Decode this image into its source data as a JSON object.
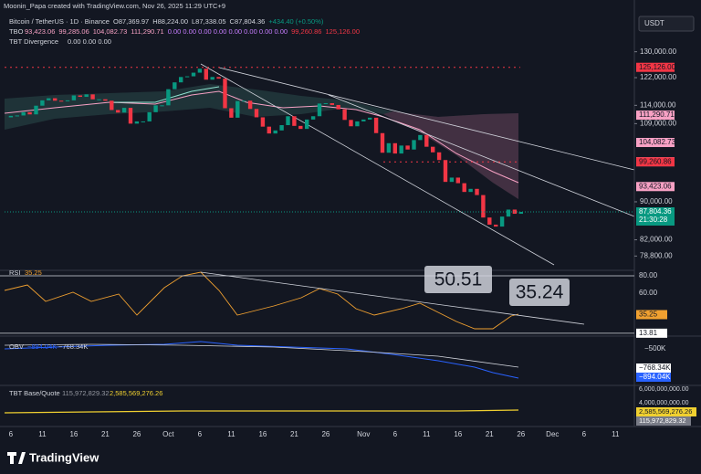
{
  "chart_data": {
    "type": "candlestick",
    "header": "Moonin_Papa created with TradingView.com, Nov 26, 2025 11:29 UTC+9",
    "symbol": "Bitcoin / TetherUS · 1D · Binance",
    "ohlc": [
      "O87,369.97",
      "H88,224.00",
      "L87,338.05",
      "C87,804.36",
      "+434.40 (+0.50%)"
    ],
    "tbo_name": "TBO",
    "tbo_values": [
      "93,423.06",
      "99,285.06",
      "104,082.73",
      "111,290.71",
      "0.00 0.00 0.00 0.00 0.00 0.00 0.00 0.00",
      "99,260.86",
      "125,126.00"
    ],
    "divergence_name": "TBT Divergence",
    "divergence_values": "0.00 0.00 0.00",
    "currency": "USDT",
    "log_scale": true,
    "up_color": "#089981",
    "down_color": "#f23645",
    "ylim": [
      76600,
      142700
    ],
    "yticks": [
      {
        "value": 130000,
        "label": "130,000.00"
      },
      {
        "value": 122000,
        "label": "122,000.00"
      },
      {
        "value": 114000,
        "label": "114,000.00"
      },
      {
        "value": 109000,
        "label": "109,000.00"
      },
      {
        "value": 90000,
        "label": "90,000.00"
      },
      {
        "value": 82000,
        "label": "82,000.00"
      },
      {
        "value": 78800,
        "label": "78,800.00"
      }
    ],
    "price_markers": [
      {
        "value": 125126,
        "label": "125,126.00",
        "color": "#f23645"
      },
      {
        "value": 111290.71,
        "label": "111,290.71",
        "color": "#f7a1c4"
      },
      {
        "value": 104082.73,
        "label": "104,082.73",
        "color": "#f7a1c4"
      },
      {
        "value": 99285.06,
        "label": "99,285.06",
        "color": "#f7a1c4"
      },
      {
        "value": 99260.86,
        "label": "99,260.86",
        "color": "#f23645"
      },
      {
        "value": 93423.06,
        "label": "93,423.06",
        "color": "#f7a1c4"
      }
    ],
    "last_price": {
      "value": 87804.36,
      "label": "87,804.36",
      "countdown": "21:30:28",
      "color": "#089981"
    },
    "closes": [
      110700,
      111100,
      111200,
      112100,
      111500,
      113900,
      115400,
      116000,
      115300,
      115200,
      115400,
      116800,
      116400,
      117100,
      115700,
      115700,
      115300,
      112700,
      112000,
      113300,
      109000,
      109600,
      109600,
      112100,
      114000,
      114000,
      118600,
      120600,
      122200,
      122400,
      123500,
      124700,
      121400,
      122200,
      121700,
      113200,
      110600,
      115200,
      115300,
      113000,
      110700,
      108200,
      106400,
      107200,
      108600,
      111000,
      108400,
      107600,
      110100,
      111000,
      114500,
      114600,
      114100,
      112900,
      110000,
      108300,
      109600,
      110100,
      110600,
      106500,
      101500,
      103900,
      101300,
      103300,
      102300,
      104700,
      106000,
      103000,
      101600,
      99700,
      94500,
      95500,
      94200,
      92200,
      92900,
      91500,
      86600,
      85100,
      84700,
      86800,
      88300,
      87400,
      87804
    ],
    "xticks": [
      {
        "value": 1,
        "label": "6"
      },
      {
        "value": 6,
        "label": "11"
      },
      {
        "value": 11,
        "label": "16"
      },
      {
        "value": 16,
        "label": "21"
      },
      {
        "value": 21,
        "label": "26"
      },
      {
        "value": 26,
        "label": "Oct"
      },
      {
        "value": 31,
        "label": "6"
      },
      {
        "value": 36,
        "label": "11"
      },
      {
        "value": 41,
        "label": "16"
      },
      {
        "value": 46,
        "label": "21"
      },
      {
        "value": 51,
        "label": "26"
      },
      {
        "value": 57,
        "label": "Nov"
      },
      {
        "value": 62,
        "label": "6"
      },
      {
        "value": 67,
        "label": "11"
      },
      {
        "value": 72,
        "label": "16"
      },
      {
        "value": 77,
        "label": "21"
      },
      {
        "value": 82,
        "label": "26"
      },
      {
        "value": 87,
        "label": "Dec"
      },
      {
        "value": 92,
        "label": "6"
      },
      {
        "value": 97,
        "label": "11"
      }
    ],
    "rsi": {
      "name": "RSI",
      "value_label": "35.25",
      "ylim": [
        12.6,
        85.3
      ],
      "yticks": [
        {
          "value": 80,
          "label": "80.00"
        },
        {
          "value": 60,
          "label": "60.00"
        },
        {
          "value": 35.25,
          "label": "35.25"
        },
        {
          "value": 13.81,
          "label": "13.81"
        }
      ],
      "callouts": [
        "50.51",
        "35.24"
      ]
    },
    "obv": {
      "name": "OBV",
      "values": [
        "−894.04K",
        "−768.34K"
      ],
      "axis": [
        "−500K",
        "−768.34K",
        "−894.04K"
      ]
    },
    "volume": {
      "name": "TBT Base/Quote",
      "values": [
        "115,972,829.32",
        "2,585,569,276.26"
      ],
      "axis": [
        "6,000,000,000.00",
        "4,000,000,000.00",
        "2,585,569,276.26",
        "115,972,829.32"
      ]
    },
    "brand": "TradingView"
  }
}
